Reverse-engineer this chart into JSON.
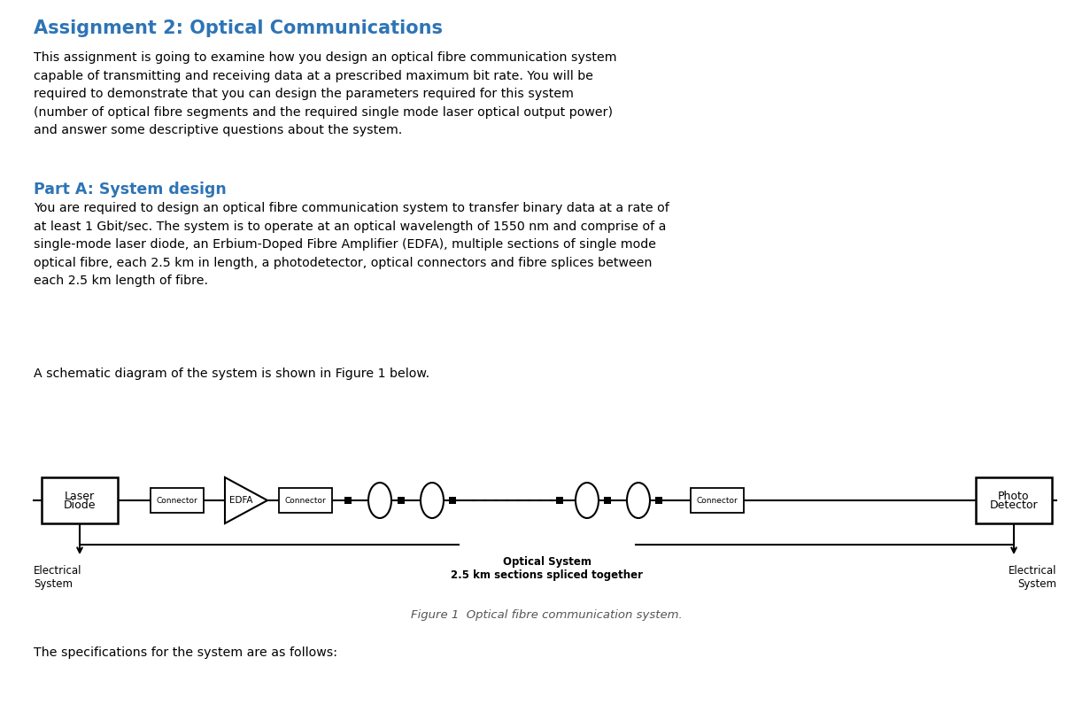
{
  "title": "Assignment 2: Optical Communications",
  "title_color": "#2E74B5",
  "title_fontsize": 15,
  "body_fontsize": 10.2,
  "body_color": "#000000",
  "part_a_title": "Part A: System design",
  "part_a_color": "#2E74B5",
  "part_a_fontsize": 12.5,
  "intro_text": "This assignment is going to examine how you design an optical fibre communication system\ncapable of transmitting and receiving data at a prescribed maximum bit rate. You will be\nrequired to demonstrate that you can design the parameters required for this system\n(number of optical fibre segments and the required single mode laser optical output power)\nand answer some descriptive questions about the system.",
  "part_a_text": "You are required to design an optical fibre communication system to transfer binary data at a rate of\nat least 1 Gbit/sec. The system is to operate at an optical wavelength of 1550 nm and comprise of a\nsingle-mode laser diode, an Erbium-Doped Fibre Amplifier (EDFA), multiple sections of single mode\noptical fibre, each 2.5 km in length, a photodetector, optical connectors and fibre splices between\neach 2.5 km length of fibre.",
  "schematic_text": "A schematic diagram of the system is shown in Figure 1 below.",
  "figure_caption": "Figure 1  Optical fibre communication system.",
  "final_text": "The specifications for the system are as follows:",
  "bg_color": "#FFFFFF"
}
